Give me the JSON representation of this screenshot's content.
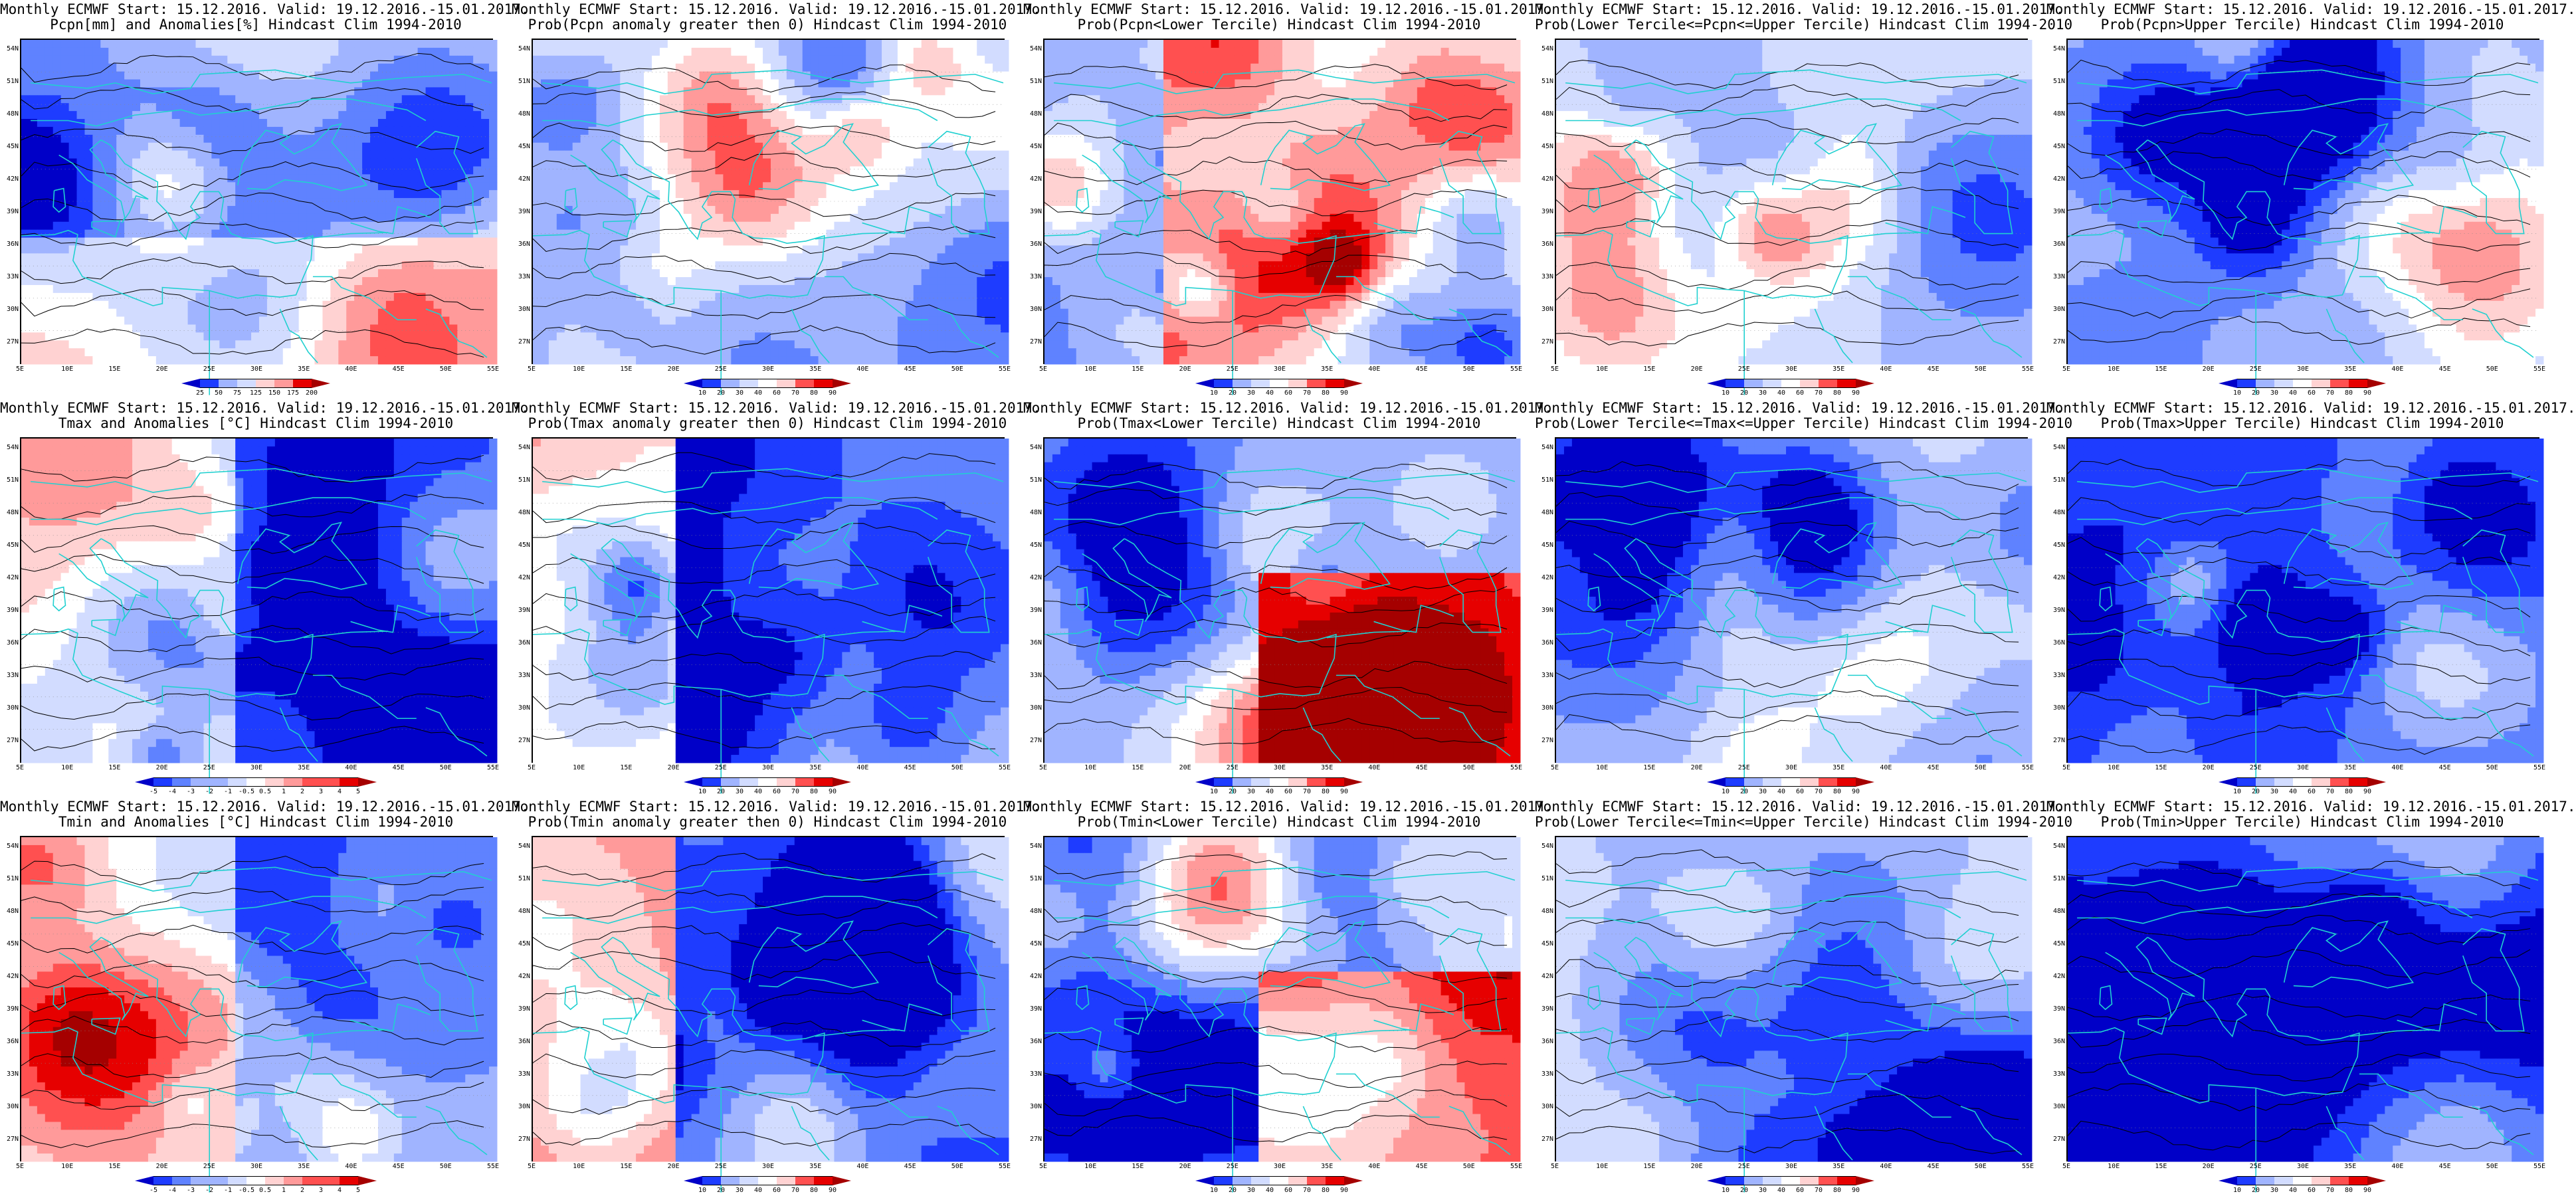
{
  "colors": {
    "palette": [
      "#0000c8",
      "#1e3cff",
      "#5f82ff",
      "#a0b4ff",
      "#d2dcff",
      "#ffffff",
      "#ffd2d2",
      "#ff9a9a",
      "#ff5050",
      "#e60000",
      "#a50000"
    ],
    "coast": "#20d0d0",
    "contour": "#000000"
  },
  "axes": {
    "lat_ticks": [
      "54N",
      "51N",
      "48N",
      "45N",
      "42N",
      "39N",
      "36N",
      "33N",
      "30N",
      "27N"
    ],
    "lon_ticks": [
      "5E",
      "10E",
      "15E",
      "20E",
      "25E",
      "30E",
      "35E",
      "40E",
      "45E",
      "50E",
      "55E"
    ]
  },
  "panels": [
    {
      "line1": "Monthly ECMWF Start: 15.12.2016. Valid: 19.12.2016.-15.01.2017.",
      "line2": "Pcpn[mm] and Anomalies[%] Hindcast Clim 1994-2010",
      "colorbar": [
        "25",
        "50",
        "75",
        "125",
        "150",
        "175",
        "200"
      ],
      "style": "anom",
      "seed": 1
    },
    {
      "line1": "Monthly ECMWF Start: 15.12.2016. Valid: 19.12.2016.-15.01.2017.",
      "line2": "Prob(Pcpn anomaly greater then 0) Hindcast Clim 1994-2010",
      "colorbar": [
        "10",
        "20",
        "30",
        "40",
        "60",
        "70",
        "80",
        "90"
      ],
      "style": "prob",
      "seed": 2
    },
    {
      "line1": "Monthly ECMWF Start: 15.12.2016. Valid: 19.12.2016.-15.01.2017.",
      "line2": "Prob(Pcpn<Lower Tercile) Hindcast Clim 1994-2010",
      "colorbar": [
        "10",
        "20",
        "30",
        "40",
        "60",
        "70",
        "80",
        "90"
      ],
      "style": "probLow",
      "seed": 3
    },
    {
      "line1": "Monthly ECMWF Start: 15.12.2016. Valid: 19.12.2016.-15.01.2017.",
      "line2": "Prob(Lower Tercile<=Pcpn<=Upper Tercile) Hindcast Clim 1994-2010",
      "colorbar": [
        "10",
        "20",
        "30",
        "40",
        "60",
        "70",
        "80",
        "90"
      ],
      "style": "probMid",
      "seed": 4
    },
    {
      "line1": "Monthly ECMWF Start: 15.12.2016. Valid: 19.12.2016.-15.01.2017.",
      "line2": "Prob(Pcpn>Upper Tercile) Hindcast Clim 1994-2010",
      "colorbar": [
        "10",
        "20",
        "30",
        "40",
        "60",
        "70",
        "80",
        "90"
      ],
      "style": "prob",
      "seed": 5
    },
    {
      "line1": "Monthly ECMWF Start: 15.12.2016. Valid: 19.12.2016.-15.01.2017.",
      "line2": "Tmax and Anomalies [°C] Hindcast Clim 1994-2010",
      "colorbar": [
        "-5",
        "-4",
        "-3",
        "-2",
        "-1",
        "-0.5",
        "0.5",
        "1",
        "2",
        "3",
        "4",
        "5"
      ],
      "style": "tanom",
      "seed": 6
    },
    {
      "line1": "Monthly ECMWF Start: 15.12.2016. Valid: 19.12.2016.-15.01.2017.",
      "line2": "Prob(Tmax anomaly greater then 0) Hindcast Clim 1994-2010",
      "colorbar": [
        "10",
        "20",
        "30",
        "40",
        "60",
        "70",
        "80",
        "90"
      ],
      "style": "tprob",
      "seed": 7
    },
    {
      "line1": "Monthly ECMWF Start: 15.12.2016. Valid: 19.12.2016.-15.01.2017.",
      "line2": "Prob(Tmax<Lower Tercile) Hindcast Clim 1994-2010",
      "colorbar": [
        "10",
        "20",
        "30",
        "40",
        "60",
        "70",
        "80",
        "90"
      ],
      "style": "tlow",
      "seed": 8
    },
    {
      "line1": "Monthly ECMWF Start: 15.12.2016. Valid: 19.12.2016.-15.01.2017.",
      "line2": "Prob(Lower Tercile<=Tmax<=Upper Tercile) Hindcast Clim 1994-2010",
      "colorbar": [
        "10",
        "20",
        "30",
        "40",
        "60",
        "70",
        "80",
        "90"
      ],
      "style": "tmid",
      "seed": 9
    },
    {
      "line1": "Monthly ECMWF Start: 15.12.2016. Valid: 19.12.2016.-15.01.2017.",
      "line2": "Prob(Tmax>Upper Tercile) Hindcast Clim 1994-2010",
      "colorbar": [
        "10",
        "20",
        "30",
        "40",
        "60",
        "70",
        "80",
        "90"
      ],
      "style": "thigh",
      "seed": 10
    },
    {
      "line1": "Monthly ECMWF Start: 15.12.2016. Valid: 19.12.2016.-15.01.2017.",
      "line2": "Tmin and Anomalies [°C] Hindcast Clim 1994-2010",
      "colorbar": [
        "-5",
        "-4",
        "-3",
        "-2",
        "-1",
        "-0.5",
        "0.5",
        "1",
        "2",
        "3",
        "4",
        "5"
      ],
      "style": "tanom",
      "seed": 11
    },
    {
      "line1": "Monthly ECMWF Start: 15.12.2016. Valid: 19.12.2016.-15.01.2017.",
      "line2": "Prob(Tmin anomaly greater then 0) Hindcast Clim 1994-2010",
      "colorbar": [
        "10",
        "20",
        "30",
        "40",
        "60",
        "70",
        "80",
        "90"
      ],
      "style": "tprob",
      "seed": 12
    },
    {
      "line1": "Monthly ECMWF Start: 15.12.2016. Valid: 19.12.2016.-15.01.2017.",
      "line2": "Prob(Tmin<Lower Tercile) Hindcast Clim 1994-2010",
      "colorbar": [
        "10",
        "20",
        "30",
        "40",
        "60",
        "70",
        "80",
        "90"
      ],
      "style": "tlow",
      "seed": 13
    },
    {
      "line1": "Monthly ECMWF Start: 15.12.2016. Valid: 19.12.2016.-15.01.2017.",
      "line2": "Prob(Lower Tercile<=Tmin<=Upper Tercile) Hindcast Clim 1994-2010",
      "colorbar": [
        "10",
        "20",
        "30",
        "40",
        "60",
        "70",
        "80",
        "90"
      ],
      "style": "tmid",
      "seed": 14
    },
    {
      "line1": "Monthly ECMWF Start: 15.12.2016. Valid: 19.12.2016.-15.01.2017.",
      "line2": "Prob(Tmin>Upper Tercile) Hindcast Clim 1994-2010",
      "colorbar": [
        "10",
        "20",
        "30",
        "40",
        "60",
        "70",
        "80",
        "90"
      ],
      "style": "thigh",
      "seed": 15
    }
  ]
}
